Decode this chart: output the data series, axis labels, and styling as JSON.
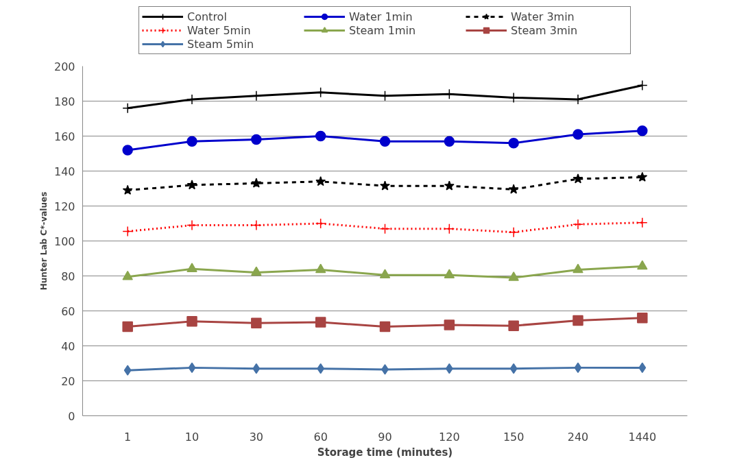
{
  "chart_data": {
    "type": "line",
    "xlabel": "Storage time (minutes)",
    "ylabel": "Hunter Lab C*-values",
    "categories": [
      "1",
      "10",
      "30",
      "60",
      "90",
      "120",
      "150",
      "240",
      "1440"
    ],
    "ylim": [
      0,
      200
    ],
    "yticks": [
      0,
      20,
      40,
      60,
      80,
      100,
      120,
      140,
      160,
      180,
      200
    ],
    "grid": "y",
    "legend": "top",
    "series": [
      {
        "name": "Control",
        "color": "#000000",
        "marker": "cross",
        "line_style": "solid",
        "values": [
          176,
          181,
          183,
          185,
          183,
          184,
          182,
          181,
          189
        ]
      },
      {
        "name": "Water 1min",
        "color": "#0000cc",
        "marker": "circle",
        "line_style": "solid",
        "values": [
          152,
          157,
          158,
          160,
          157,
          157,
          156,
          161,
          163
        ]
      },
      {
        "name": "Water 3min",
        "color": "#000000",
        "marker": "star",
        "line_style": "dashed",
        "values": [
          129,
          132,
          133,
          134,
          131.5,
          131.5,
          129.5,
          135.5,
          136.5
        ]
      },
      {
        "name": "Water 5min",
        "color": "#ff0000",
        "marker": "cross",
        "line_style": "dotted",
        "values": [
          105.5,
          109,
          109,
          110,
          107,
          107,
          105,
          109.5,
          110.5
        ]
      },
      {
        "name": "Steam 1min",
        "color": "#8aa64e",
        "marker": "triangle",
        "line_style": "solid",
        "values": [
          79.5,
          84,
          82,
          83.5,
          80.5,
          80.5,
          79,
          83.5,
          85.5
        ]
      },
      {
        "name": "Steam 3min",
        "color": "#a84442",
        "marker": "square",
        "line_style": "solid",
        "values": [
          51,
          54,
          53,
          53.5,
          51,
          52,
          51.5,
          54.5,
          56
        ]
      },
      {
        "name": "Steam 5min",
        "color": "#4572a7",
        "marker": "diamond",
        "line_style": "solid",
        "values": [
          26,
          27.5,
          27,
          27,
          26.5,
          27,
          27,
          27.5,
          27.5
        ]
      }
    ]
  }
}
